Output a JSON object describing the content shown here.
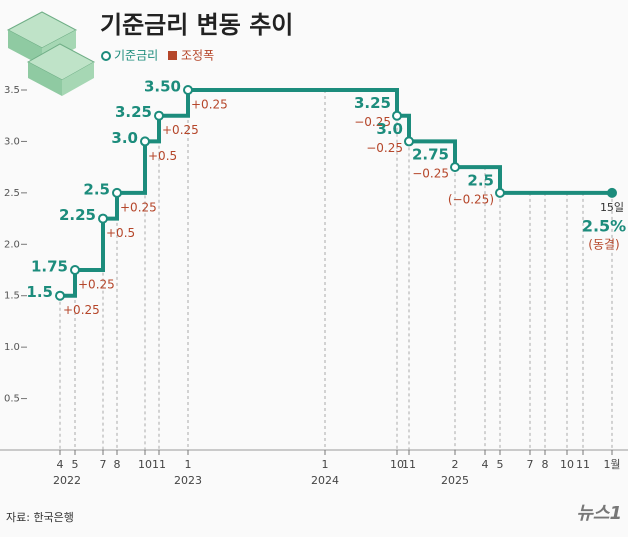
{
  "chart_data": {
    "type": "step",
    "title": "기준금리 변동 추이",
    "categories": [
      "4",
      "5",
      "7",
      "8",
      "10",
      "11",
      "1",
      "1",
      "10",
      "11",
      "2",
      "4",
      "5",
      "7",
      "8",
      "10",
      "11",
      "1월"
    ],
    "years": [
      "2022",
      null,
      null,
      null,
      null,
      null,
      "2023",
      "2024",
      null,
      null,
      "2025",
      null,
      null,
      null,
      null,
      null,
      null,
      null
    ],
    "series": [
      {
        "name": "기준금리",
        "color": "#1c8c7c",
        "values": [
          1.5,
          1.75,
          2.25,
          2.5,
          3.0,
          3.25,
          3.5,
          null,
          3.25,
          3.0,
          2.75,
          null,
          2.5,
          null,
          null,
          null,
          null,
          2.5
        ],
        "value_labels": [
          "1.5",
          "1.75",
          "2.25",
          "2.5",
          "3.0",
          "3.25",
          "3.50",
          null,
          "3.25",
          "3.0",
          "2.75",
          null,
          "2.5",
          null,
          null,
          null,
          null,
          "2.5%"
        ]
      },
      {
        "name": "조정폭",
        "color": "#b5462a",
        "values": [
          0.25,
          0.25,
          0.5,
          0.25,
          0.5,
          0.25,
          0.25,
          null,
          -0.25,
          -0.25,
          -0.25,
          null,
          -0.25,
          null,
          null,
          null,
          null,
          0
        ],
        "value_labels": [
          "+0.25",
          "+0.25",
          "+0.5",
          "+0.25",
          "+0.5",
          "+0.25",
          "+0.25",
          null,
          "−0.25",
          "−0.25",
          "−0.25",
          null,
          "(−0.25)",
          null,
          null,
          null,
          null,
          "(동결)"
        ]
      }
    ],
    "annotation": "15일",
    "ylim": [
      0,
      3.5
    ],
    "yticks": [
      0.5,
      {
        "value": 1,
        "label": "1.0"
      },
      1.5,
      {
        "value": 2,
        "label": "2.0"
      },
      2.5,
      {
        "value": 3,
        "label": "3.0"
      },
      3.5
    ],
    "source": "자료: 한국은행",
    "logo": "뉴스1"
  }
}
